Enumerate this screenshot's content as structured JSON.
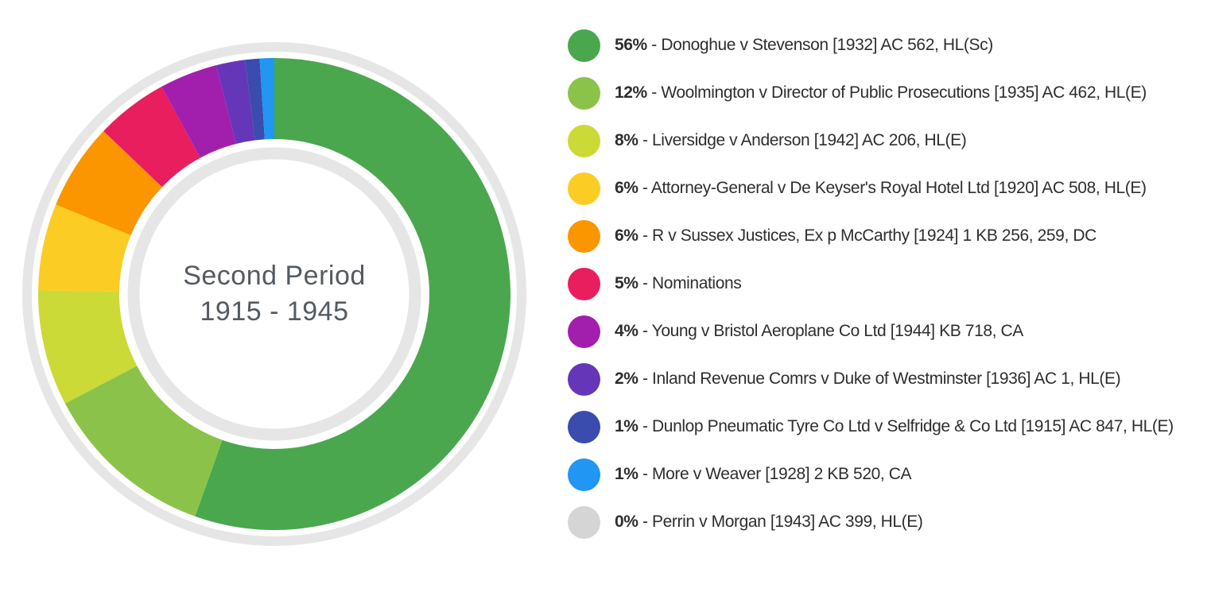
{
  "chart_data": {
    "type": "pie",
    "variant": "donut",
    "title": "Second Period 1915 - 1945",
    "center_label": {
      "line1": "Second Period",
      "line2": "1915 - 1945"
    },
    "legend_position": "right",
    "start_angle_deg": -90,
    "direction": "clockwise",
    "separator": " - ",
    "colors": {
      "outer_ring": "#e6e6e6",
      "inner_ring": "#e6e6e6",
      "center_text": "#545a62",
      "legend_text": "#2e2e2e",
      "background": "#ffffff"
    },
    "series": [
      {
        "percent": 56,
        "percent_label": "56%",
        "label": "Donoghue v Stevenson [1932] AC 562, HL(Sc)",
        "color": "#4aa74e"
      },
      {
        "percent": 12,
        "percent_label": "12%",
        "label": "Woolmington v Director of Public Prosecutions [1935] AC 462, HL(E)",
        "color": "#8bc34a"
      },
      {
        "percent": 8,
        "percent_label": "8%",
        "label": "Liversidge v Anderson [1942] AC 206, HL(E)",
        "color": "#cbda37"
      },
      {
        "percent": 6,
        "percent_label": "6%",
        "label": "Attorney-General v De Keyser's Royal Hotel Ltd [1920] AC 508, HL(E)",
        "color": "#fbcd24"
      },
      {
        "percent": 6,
        "percent_label": "6%",
        "label": "R v Sussex Justices, Ex p McCarthy [1924] 1 KB 256, 259, DC",
        "color": "#fb9500"
      },
      {
        "percent": 5,
        "percent_label": "5%",
        "label": "Nominations",
        "color": "#e91e5e"
      },
      {
        "percent": 4,
        "percent_label": "4%",
        "label": "Young v Bristol Aeroplane Co Ltd [1944] KB 718, CA",
        "color": "#a21fad"
      },
      {
        "percent": 2,
        "percent_label": "2%",
        "label": "Inland Revenue Comrs v Duke of Westminster [1936] AC 1, HL(E)",
        "color": "#6636b8"
      },
      {
        "percent": 1,
        "percent_label": "1%",
        "label": "Dunlop Pneumatic Tyre Co Ltd v Selfridge & Co Ltd [1915] AC 847, HL(E)",
        "color": "#3a4cae"
      },
      {
        "percent": 1,
        "percent_label": "1%",
        "label": "More v Weaver [1928] 2 KB 520, CA",
        "color": "#2196f3"
      },
      {
        "percent": 0,
        "percent_label": "0%",
        "label": "Perrin v Morgan [1943] AC 399, HL(E)",
        "color": "#d5d5d5"
      }
    ],
    "geometry": {
      "outer_ring_radius": 311,
      "outer_ring_width": 12,
      "segment_outer_radius": 297,
      "segment_inner_radius": 195,
      "inner_ring_radius": 177,
      "inner_ring_width": 15
    }
  }
}
